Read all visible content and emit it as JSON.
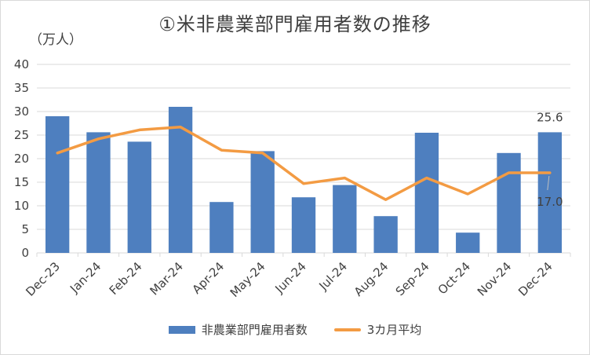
{
  "chart": {
    "title": "①米非農業部門雇用者数の推移",
    "unit_label": "（万人）"
  },
  "colors": {
    "bar": "#4e7fbf",
    "line": "#f39b43",
    "text": "#404040",
    "grid": "#d9d9d9"
  },
  "chart_data": {
    "type": "bar",
    "title": "①米非農業部門雇用者数の推移",
    "ylabel": "（万人）",
    "xlabel": "",
    "ylim": [
      0,
      40
    ],
    "yticks": [
      0,
      5,
      10,
      15,
      20,
      25,
      30,
      35,
      40
    ],
    "grid": true,
    "legend_position": "bottom",
    "categories": [
      "Dec-23",
      "Jan-24",
      "Feb-24",
      "Mar-24",
      "Apr-24",
      "May-24",
      "Jun-24",
      "Jul-24",
      "Aug-24",
      "Sep-24",
      "Oct-24",
      "Nov-24",
      "Dec-24"
    ],
    "series": [
      {
        "name": "非農業部門雇用者数",
        "kind": "bar",
        "values": [
          29.0,
          25.6,
          23.6,
          31.0,
          10.8,
          21.6,
          11.8,
          14.4,
          7.8,
          25.5,
          4.3,
          21.2,
          25.6
        ]
      },
      {
        "name": "3カ月平均",
        "kind": "line",
        "values": [
          21.2,
          24.2,
          26.1,
          26.7,
          21.8,
          21.2,
          14.7,
          15.9,
          11.3,
          15.9,
          12.5,
          17.0,
          17.0
        ]
      }
    ],
    "annotations": [
      {
        "text": "25.6",
        "category": "Dec-24",
        "series": "非農業部門雇用者数"
      },
      {
        "text": "17.0",
        "category": "Dec-24",
        "series": "3カ月平均"
      }
    ]
  }
}
